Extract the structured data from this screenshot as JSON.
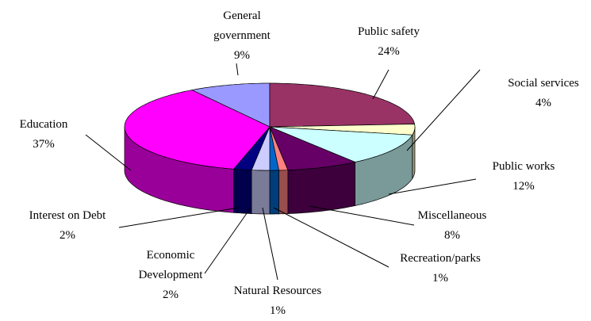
{
  "chart_data": {
    "type": "pie3d",
    "categories": [
      "General government",
      "Public safety",
      "Social services",
      "Public works",
      "Miscellaneous",
      "Recreation/parks",
      "Natural Resources",
      "Economic Development",
      "Interest on Debt",
      "Education"
    ],
    "values": [
      9,
      24,
      4,
      12,
      8,
      1,
      1,
      2,
      2,
      37
    ],
    "value_labels": [
      "9%",
      "24%",
      "4%",
      "12%",
      "8%",
      "1%",
      "1%",
      "2%",
      "2%",
      "37%"
    ],
    "colors": [
      "#9999ff",
      "#993366",
      "#ffffcc",
      "#ccffff",
      "#660066",
      "#ff8080",
      "#0066cc",
      "#ccccff",
      "#000080",
      "#ff00ff"
    ]
  }
}
